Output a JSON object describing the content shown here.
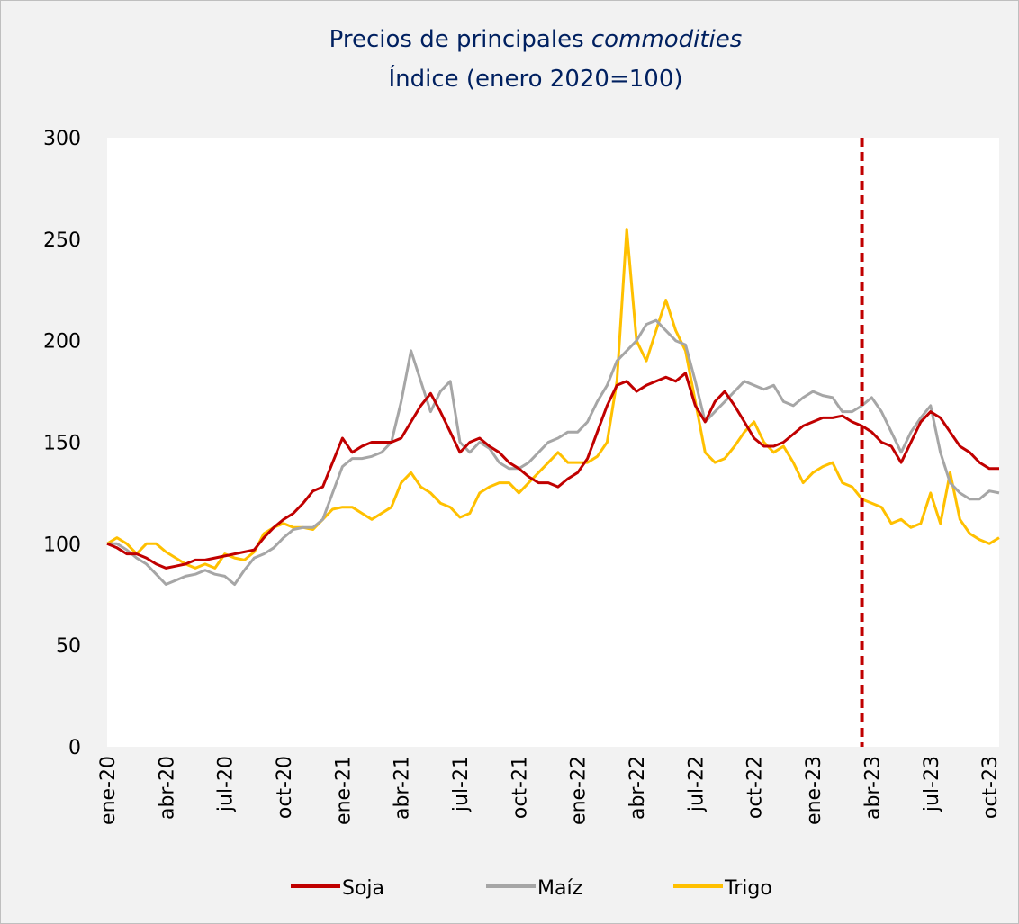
{
  "chart_data": {
    "type": "line",
    "title": "Precios de principales",
    "title_italic": "commodities",
    "subtitle": "Índice (enero 2020=100)",
    "categories": [
      "ene-20",
      null,
      null,
      null,
      null,
      null,
      "abr-20",
      null,
      null,
      null,
      null,
      null,
      "jul-20",
      null,
      null,
      null,
      null,
      null,
      "oct-20",
      null,
      null,
      null,
      null,
      null,
      "ene-21",
      null,
      null,
      null,
      null,
      null,
      "abr-21",
      null,
      null,
      null,
      null,
      null,
      "jul-21",
      null,
      null,
      null,
      null,
      null,
      "oct-21",
      null,
      null,
      null,
      null,
      null,
      "ene-22",
      null,
      null,
      null,
      null,
      null,
      "abr-22",
      null,
      null,
      null,
      null,
      null,
      "jul-22",
      null,
      null,
      null,
      null,
      null,
      "oct-22",
      null,
      null,
      null,
      null,
      null,
      "ene-23",
      null,
      null,
      null,
      null,
      null,
      "abr-23",
      null,
      null,
      null,
      null,
      null,
      "jul-23",
      null,
      null,
      null,
      null,
      null,
      "oct-23",
      null
    ],
    "series": [
      {
        "name": "Soja",
        "color": "#c00000",
        "values": [
          100,
          98,
          95,
          95,
          93,
          90,
          88,
          89,
          90,
          92,
          92,
          93,
          94,
          95,
          96,
          97,
          103,
          108,
          112,
          115,
          120,
          126,
          128,
          140,
          152,
          145,
          148,
          150,
          150,
          150,
          152,
          160,
          168,
          174,
          165,
          155,
          145,
          150,
          152,
          148,
          145,
          140,
          137,
          133,
          130,
          130,
          128,
          132,
          135,
          142,
          155,
          168,
          178,
          180,
          175,
          178,
          180,
          182,
          180,
          184,
          168,
          160,
          170,
          175,
          168,
          160,
          152,
          148,
          148,
          150,
          154,
          158,
          160,
          162,
          162,
          163,
          160,
          158,
          155,
          150,
          148,
          140,
          150,
          160,
          165,
          162,
          155,
          148,
          145,
          140,
          137,
          137
        ]
      },
      {
        "name": "Maíz",
        "color": "#a6a6a6",
        "values": [
          100,
          100,
          97,
          93,
          90,
          85,
          80,
          82,
          84,
          85,
          87,
          85,
          84,
          80,
          87,
          93,
          95,
          98,
          103,
          107,
          108,
          108,
          112,
          125,
          138,
          142,
          142,
          143,
          145,
          150,
          170,
          195,
          180,
          165,
          175,
          180,
          150,
          145,
          150,
          147,
          140,
          137,
          137,
          140,
          145,
          150,
          152,
          155,
          155,
          160,
          170,
          178,
          190,
          195,
          200,
          208,
          210,
          205,
          200,
          198,
          180,
          160,
          165,
          170,
          175,
          180,
          178,
          176,
          178,
          170,
          168,
          172,
          175,
          173,
          172,
          165,
          165,
          168,
          172,
          165,
          155,
          145,
          155,
          162,
          168,
          145,
          130,
          125,
          122,
          122,
          126,
          125
        ]
      },
      {
        "name": "Trigo",
        "color": "#ffc000",
        "values": [
          100,
          103,
          100,
          95,
          100,
          100,
          96,
          93,
          90,
          88,
          90,
          88,
          95,
          93,
          92,
          96,
          105,
          108,
          110,
          108,
          108,
          107,
          112,
          117,
          118,
          118,
          115,
          112,
          115,
          118,
          130,
          135,
          128,
          125,
          120,
          118,
          113,
          115,
          125,
          128,
          130,
          130,
          125,
          130,
          135,
          140,
          145,
          140,
          140,
          140,
          143,
          150,
          180,
          255,
          200,
          190,
          205,
          220,
          205,
          195,
          170,
          145,
          140,
          142,
          148,
          155,
          160,
          150,
          145,
          148,
          140,
          130,
          135,
          138,
          140,
          130,
          128,
          122,
          120,
          118,
          110,
          112,
          108,
          110,
          125,
          110,
          135,
          112,
          105,
          102,
          100,
          103
        ]
      }
    ],
    "ylim": [
      0,
      300
    ],
    "yticks": [
      0,
      50,
      100,
      150,
      200,
      250,
      300
    ],
    "grid": false,
    "legend": "bottom",
    "vline": {
      "category_index": 77,
      "color": "#c00000"
    }
  }
}
